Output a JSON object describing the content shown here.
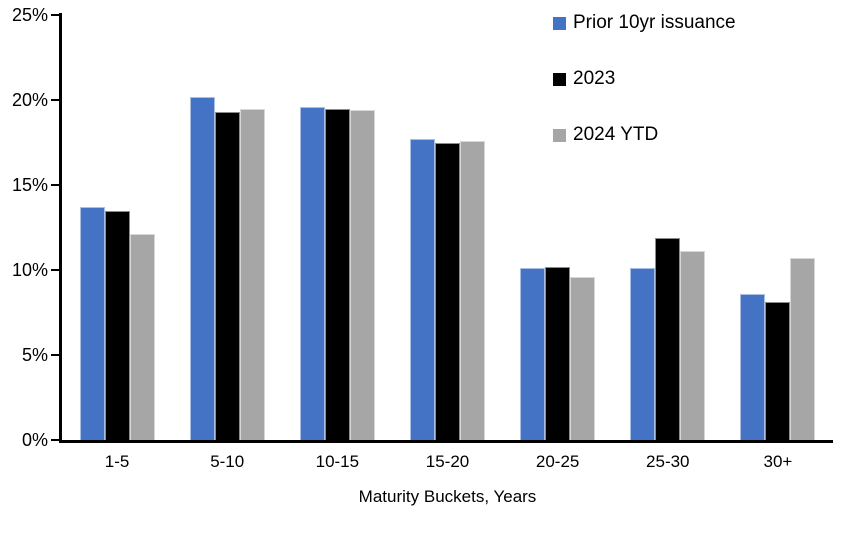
{
  "chart_data": {
    "type": "bar",
    "title": "",
    "xlabel": "Maturity Buckets, Years",
    "ylabel": "",
    "categories": [
      "1-5",
      "5-10",
      "10-15",
      "15-20",
      "20-25",
      "25-30",
      "30+"
    ],
    "series": [
      {
        "name": "Prior 10yr issuance",
        "color": "#4472C4",
        "values": [
          13.7,
          20.2,
          19.6,
          17.7,
          10.1,
          10.1,
          8.6
        ]
      },
      {
        "name": "2023",
        "color": "#000000",
        "values": [
          13.5,
          19.3,
          19.5,
          17.5,
          10.2,
          11.9,
          8.1
        ]
      },
      {
        "name": "2024 YTD",
        "color": "#A6A6A6",
        "values": [
          12.1,
          19.5,
          19.4,
          17.6,
          9.6,
          11.1,
          10.7
        ]
      }
    ],
    "ylim": [
      0,
      25
    ],
    "yticks": [
      0,
      5,
      10,
      15,
      20,
      25
    ],
    "ytick_labels": [
      "0%",
      "5%",
      "10%",
      "15%",
      "20%",
      "25%"
    ],
    "grid": false,
    "legend_position": "top-right",
    "axis_color": "#000000",
    "background_color": "#FFFFFF"
  }
}
